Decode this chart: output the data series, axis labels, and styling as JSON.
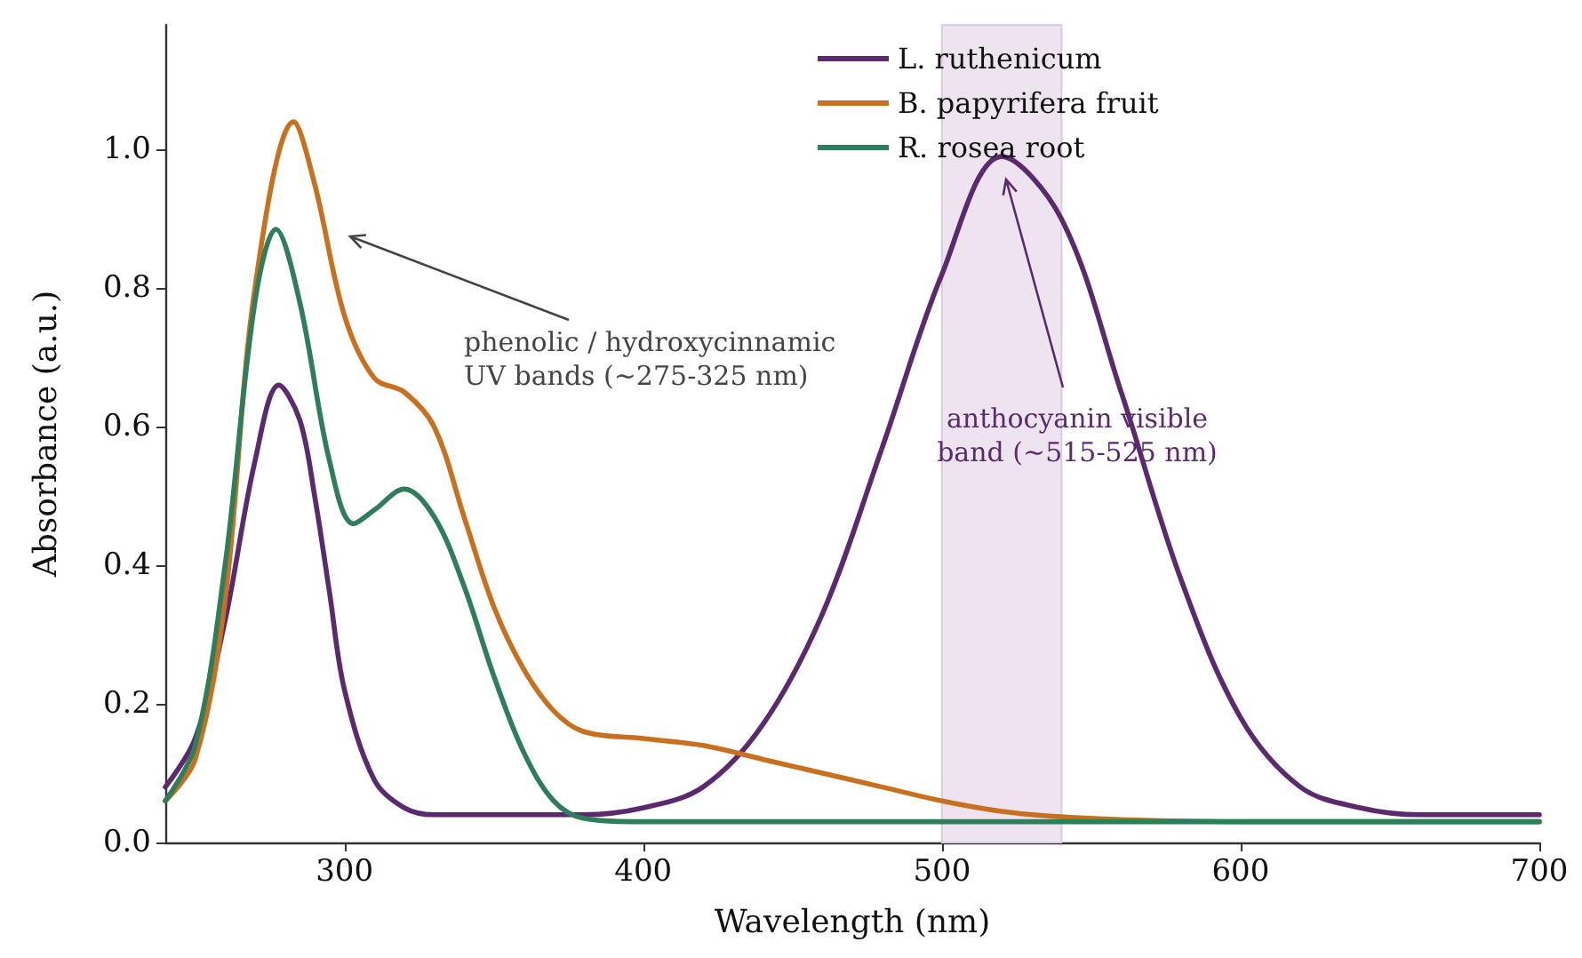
{
  "chart_data": {
    "type": "line",
    "xlabel": "Wavelength (nm)",
    "ylabel": "Absorbance (a.u.)",
    "xlim": [
      240,
      700
    ],
    "xticks": [
      300,
      400,
      500,
      600,
      700
    ],
    "ylim": [
      0,
      1.18
    ],
    "yticks": [
      {
        "value": 0,
        "label": "0.0"
      },
      {
        "value": 0.2,
        "label": "0.2"
      },
      {
        "value": 0.4,
        "label": "0.4"
      },
      {
        "value": 0.6,
        "label": "0.6"
      },
      {
        "value": 0.8,
        "label": "0.8"
      },
      {
        "value": 1.0,
        "label": "1.0"
      }
    ],
    "grid": false,
    "legend": "top",
    "marker": "none",
    "line_style": "solid",
    "series": [
      {
        "name": "L. ruthenicum",
        "color": "#5b2a6e",
        "x": [
          240,
          250,
          260,
          270,
          278,
          285,
          290,
          295,
          300,
          310,
          320,
          330,
          340,
          360,
          380,
          400,
          420,
          440,
          460,
          480,
          500,
          520,
          540,
          560,
          580,
          600,
          620,
          640,
          660,
          680,
          700
        ],
        "values": [
          0.08,
          0.15,
          0.32,
          0.55,
          0.66,
          0.61,
          0.5,
          0.36,
          0.22,
          0.09,
          0.05,
          0.04,
          0.04,
          0.04,
          0.04,
          0.05,
          0.08,
          0.17,
          0.33,
          0.57,
          0.82,
          0.99,
          0.9,
          0.65,
          0.38,
          0.18,
          0.08,
          0.05,
          0.04,
          0.04,
          0.04
        ]
      },
      {
        "name": "B. papyrifera fruit",
        "color": "#c8701e",
        "x": [
          240,
          250,
          260,
          270,
          283,
          290,
          300,
          310,
          320,
          330,
          340,
          350,
          360,
          370,
          380,
          400,
          420,
          440,
          460,
          480,
          500,
          520,
          540,
          560,
          600,
          650,
          700
        ],
        "values": [
          0.06,
          0.12,
          0.35,
          0.8,
          1.04,
          0.95,
          0.76,
          0.67,
          0.65,
          0.6,
          0.47,
          0.34,
          0.25,
          0.19,
          0.16,
          0.15,
          0.14,
          0.12,
          0.1,
          0.08,
          0.06,
          0.045,
          0.037,
          0.033,
          0.03,
          0.03,
          0.03
        ]
      },
      {
        "name": "R. rosea root",
        "color": "#2e7d5b",
        "x": [
          240,
          250,
          260,
          270,
          277,
          285,
          295,
          303,
          310,
          320,
          330,
          340,
          350,
          360,
          370,
          380,
          400,
          500,
          600,
          700
        ],
        "values": [
          0.06,
          0.14,
          0.4,
          0.78,
          0.885,
          0.78,
          0.55,
          0.46,
          0.48,
          0.51,
          0.47,
          0.37,
          0.24,
          0.13,
          0.06,
          0.035,
          0.03,
          0.03,
          0.03,
          0.03
        ]
      }
    ],
    "bands": [
      {
        "axis": "x",
        "from": 500,
        "to": 540,
        "color": "#ede4ef"
      }
    ],
    "annotations": [
      "phenolic / hydroxycinnamic\nUV bands (~275-325 nm)",
      "anthocyanin visible\nband (~515-525 nm)"
    ]
  }
}
